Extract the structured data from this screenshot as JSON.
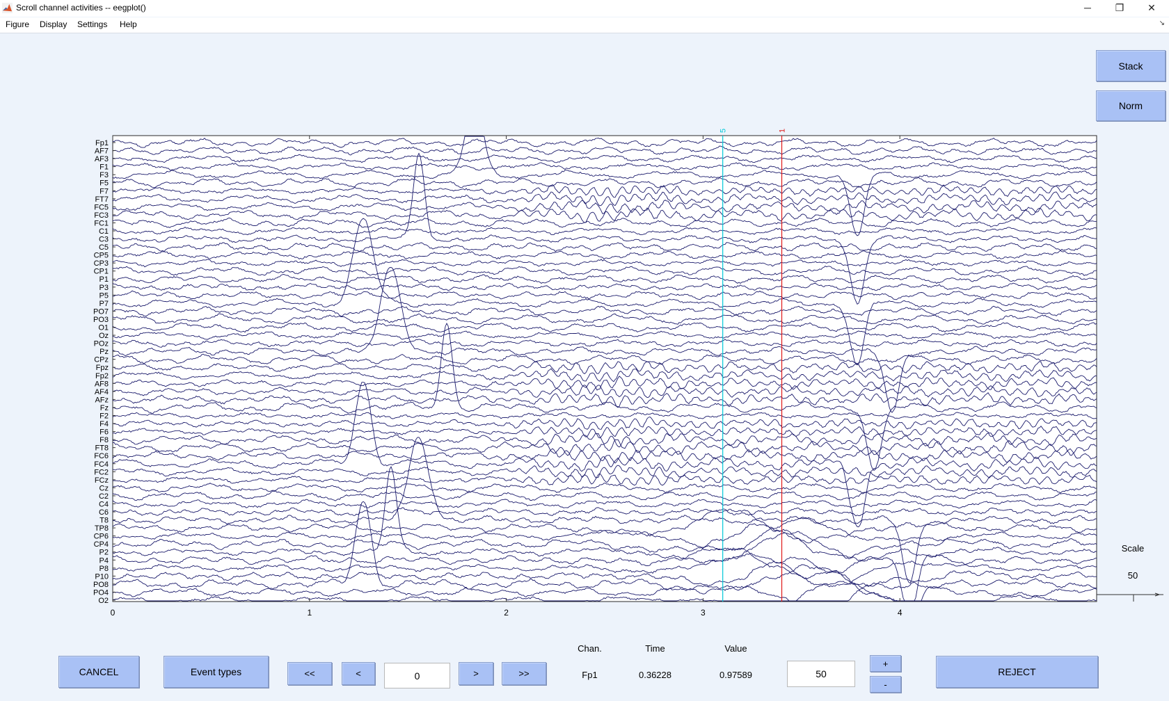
{
  "window": {
    "title": "Scroll channel activities -- eegplot()",
    "minimize_glyph": "─",
    "restore_glyph": "❐",
    "close_glyph": "✕"
  },
  "menu": {
    "items": [
      "Figure",
      "Display",
      "Settings",
      "Help"
    ],
    "pin_glyph": "↘"
  },
  "side_buttons": {
    "stack": "Stack",
    "norm": "Norm"
  },
  "scale_panel": {
    "label": "Scale",
    "value": "50"
  },
  "plot": {
    "channels": [
      "Fp1",
      "AF7",
      "AF3",
      "F1",
      "F3",
      "F5",
      "F7",
      "FT7",
      "FC5",
      "FC3",
      "FC1",
      "C1",
      "C3",
      "C5",
      "CP5",
      "CP3",
      "CP1",
      "P1",
      "P3",
      "P5",
      "P7",
      "PO7",
      "PO3",
      "O1",
      "Oz",
      "POz",
      "Pz",
      "CPz",
      "Fpz",
      "Fp2",
      "AF8",
      "AF4",
      "AFz",
      "Fz",
      "F2",
      "F4",
      "F6",
      "F8",
      "FT8",
      "FC6",
      "FC4",
      "FC2",
      "FCz",
      "Cz",
      "C2",
      "C4",
      "C6",
      "T8",
      "TP8",
      "CP6",
      "CP4",
      "P2",
      "P4",
      "P8",
      "P10",
      "PO8",
      "PO4",
      "O2"
    ],
    "x_ticks": [
      "0",
      "1",
      "2",
      "3",
      "4"
    ],
    "time_window": [
      0,
      5
    ],
    "trace_color": "#1a1a6b",
    "events": [
      {
        "label": "5",
        "time": 3.1,
        "color": "#00c8d8"
      },
      {
        "label": "1",
        "time": 3.4,
        "color": "#e01818"
      }
    ]
  },
  "controls": {
    "cancel": "CANCEL",
    "event_types": "Event types",
    "scroll_far_left": "<<",
    "scroll_left": "<",
    "position_value": "0",
    "scroll_right": ">",
    "scroll_far_right": ">>",
    "chan_header": "Chan.",
    "time_header": "Time",
    "value_header": "Value",
    "chan_value": "Fp1",
    "time_value": "0.36228",
    "value_value": "0.97589",
    "scale_value": "50",
    "plus": "+",
    "minus": "-",
    "reject": "REJECT"
  },
  "colors": {
    "background": "#edf3fb",
    "button": "#a9c1f5"
  }
}
